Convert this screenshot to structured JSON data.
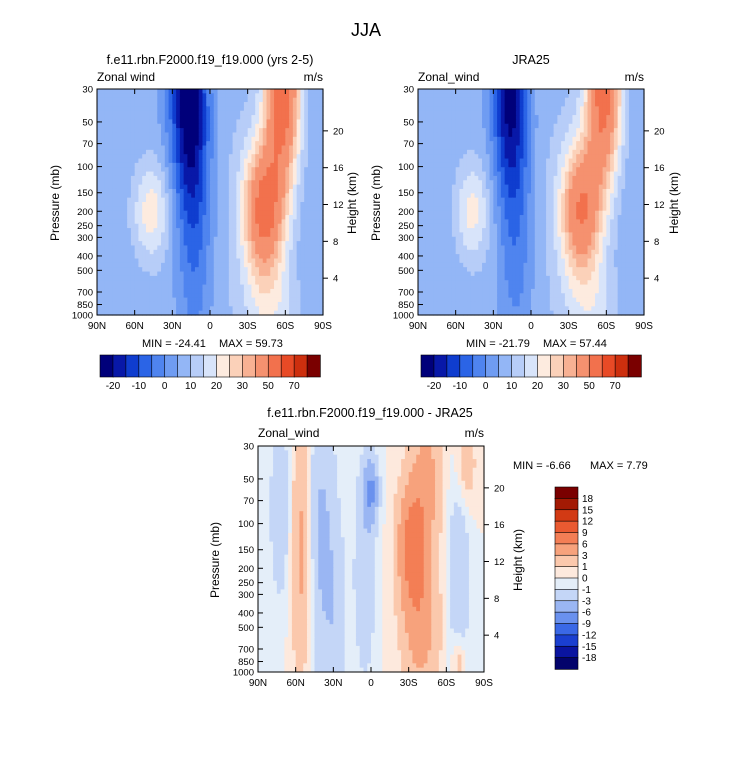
{
  "figure": {
    "title": "JJA"
  },
  "chart_data": [
    {
      "type": "heatmap",
      "id": "model",
      "title": "f.e11.rbn.F2000.f19_f19.000 (yrs 2-5)",
      "subtitle_left": "Zonal wind",
      "subtitle_right": "m/s",
      "ylabel_left": "Pressure (mb)",
      "ylabel_right": "Height (km)",
      "x_domain": [
        -90,
        90
      ],
      "x_ticks": [
        "90N",
        "60N",
        "30N",
        "0",
        "30S",
        "60S",
        "90S"
      ],
      "pressure_ticks": [
        30,
        50,
        70,
        100,
        150,
        200,
        250,
        300,
        400,
        500,
        700,
        850,
        1000
      ],
      "height_ticks": [
        4,
        8,
        12,
        16,
        20
      ],
      "min_label": "MIN = -24.41",
      "max_label": "MAX = 59.73",
      "min": -24.41,
      "max": 59.73,
      "colorbar": {
        "orientation": "horizontal",
        "labels": [
          "-20",
          "-10",
          "0",
          "10",
          "20",
          "30",
          "50",
          "70"
        ],
        "levels": [
          -25,
          -20,
          -15,
          -10,
          -5,
          0,
          5,
          10,
          15,
          20,
          25,
          30,
          40,
          50,
          60,
          70
        ]
      },
      "features": [
        {
          "x": -47,
          "p": 200,
          "amp": 16,
          "sx": 11,
          "sy": 0.55
        },
        {
          "x": -17,
          "p": 35,
          "amp": -30,
          "sx": 11,
          "sy": 1.2
        },
        {
          "x": -12,
          "p": 300,
          "amp": -12,
          "sx": 10,
          "sy": 1.5
        },
        {
          "x": 43,
          "p": 200,
          "amp": 42,
          "sx": 12,
          "sy": 0.75
        },
        {
          "x": 58,
          "p": 30,
          "amp": 46,
          "sx": 10,
          "sy": 1.0
        },
        {
          "x": 50,
          "p": 900,
          "amp": 10,
          "sx": 16,
          "sy": 0.5
        }
      ]
    },
    {
      "type": "heatmap",
      "id": "obs",
      "title": "JRA25",
      "subtitle_left": "Zonal_wind",
      "subtitle_right": "m/s",
      "ylabel_left": "Pressure (mb)",
      "ylabel_right": "Height (km)",
      "x_domain": [
        -90,
        90
      ],
      "x_ticks": [
        "90N",
        "60N",
        "30N",
        "0",
        "30S",
        "60S",
        "90S"
      ],
      "pressure_ticks": [
        30,
        50,
        70,
        100,
        150,
        200,
        250,
        300,
        400,
        500,
        700,
        850,
        1000
      ],
      "height_ticks": [
        4,
        8,
        12,
        16,
        20
      ],
      "min_label": "MIN = -21.79",
      "max_label": "MAX = 57.44",
      "min": -21.79,
      "max": 57.44,
      "colorbar": {
        "orientation": "horizontal",
        "labels": [
          "-20",
          "-10",
          "0",
          "10",
          "20",
          "30",
          "50",
          "70"
        ],
        "levels": [
          -25,
          -20,
          -15,
          -10,
          -5,
          0,
          5,
          10,
          15,
          20,
          25,
          30,
          40,
          50,
          60,
          70
        ]
      },
      "features": [
        {
          "x": -47,
          "p": 200,
          "amp": 15,
          "sx": 10,
          "sy": 0.55
        },
        {
          "x": -17,
          "p": 33,
          "amp": -27,
          "sx": 10,
          "sy": 1.1
        },
        {
          "x": -12,
          "p": 300,
          "amp": -11,
          "sx": 10,
          "sy": 1.5
        },
        {
          "x": 40,
          "p": 200,
          "amp": 38,
          "sx": 12,
          "sy": 0.75
        },
        {
          "x": 58,
          "p": 30,
          "amp": 44,
          "sx": 10,
          "sy": 1.0
        },
        {
          "x": 50,
          "p": 900,
          "amp": 9,
          "sx": 16,
          "sy": 0.5
        }
      ]
    },
    {
      "type": "heatmap",
      "id": "diff",
      "title": "f.e11.rbn.F2000.f19_f19.000 - JRA25",
      "subtitle_left": "Zonal_wind",
      "subtitle_right": "m/s",
      "ylabel_left": "Pressure (mb)",
      "ylabel_right": "Height (km)",
      "x_domain": [
        -90,
        90
      ],
      "x_ticks": [
        "90N",
        "60N",
        "30N",
        "0",
        "30S",
        "60S",
        "90S"
      ],
      "pressure_ticks": [
        30,
        50,
        70,
        100,
        150,
        200,
        250,
        300,
        400,
        500,
        700,
        850,
        1000
      ],
      "height_ticks": [
        4,
        8,
        12,
        16,
        20
      ],
      "min_label": "MIN = -6.66",
      "max_label": "MAX =   7.79",
      "min": -6.66,
      "max": 7.79,
      "colorbar": {
        "orientation": "vertical",
        "labels": [
          "18",
          "15",
          "12",
          "9",
          "6",
          "3",
          "1",
          "0",
          "-1",
          "-3",
          "-6",
          "-9",
          "-12",
          "-15",
          "-18"
        ],
        "levels": [
          -18,
          -15,
          -12,
          -9,
          -6,
          -3,
          -1,
          0,
          1,
          3,
          6,
          9,
          12,
          15,
          18
        ]
      },
      "features": [
        {
          "x": -55,
          "p": 150,
          "amp": 4,
          "sx": 6,
          "sy": 1.3
        },
        {
          "x": -72,
          "p": 80,
          "amp": -2.5,
          "sx": 6,
          "sy": 1.0
        },
        {
          "x": -40,
          "p": 120,
          "amp": -3.5,
          "sx": 8,
          "sy": 1.5
        },
        {
          "x": -28,
          "p": 400,
          "amp": -2,
          "sx": 6,
          "sy": 1.0
        },
        {
          "x": 0,
          "p": 60,
          "amp": -6,
          "sx": 4,
          "sy": 0.35
        },
        {
          "x": -5,
          "p": 200,
          "amp": -2.5,
          "sx": 6,
          "sy": 1.2
        },
        {
          "x": 33,
          "p": 140,
          "amp": 7.5,
          "sx": 8,
          "sy": 0.7
        },
        {
          "x": 40,
          "p": 500,
          "amp": 4,
          "sx": 10,
          "sy": 0.8
        },
        {
          "x": 45,
          "p": 45,
          "amp": 3.5,
          "sx": 8,
          "sy": 0.8
        },
        {
          "x": 70,
          "p": 250,
          "amp": -2.5,
          "sx": 6,
          "sy": 1.5
        },
        {
          "x": 75,
          "p": 40,
          "amp": 2.5,
          "sx": 6,
          "sy": 0.5
        },
        {
          "x": 70,
          "p": 850,
          "amp": 3,
          "sx": 4,
          "sy": 0.3
        }
      ]
    }
  ],
  "colors": {
    "full_field": [
      "#00007a",
      "#0818a8",
      "#0f3dcf",
      "#2b64e6",
      "#4f84ef",
      "#6f9cf2",
      "#93b6f6",
      "#b7cdf8",
      "#d8e4fa",
      "#fdebdf",
      "#fbd1b9",
      "#f8b193",
      "#f5916f",
      "#f2714d",
      "#e84a26",
      "#cd2f0e",
      "#7a0000"
    ],
    "difference": [
      "#03036b",
      "#0a14a0",
      "#1a3fd0",
      "#3a68e6",
      "#6a91ee",
      "#9ab6f3",
      "#c4d6f7",
      "#e4eef9",
      "#fde9dd",
      "#fbc8ac",
      "#f7a27c",
      "#f37e55",
      "#ea5a31",
      "#d23a14",
      "#a31a04",
      "#7a0000"
    ]
  }
}
